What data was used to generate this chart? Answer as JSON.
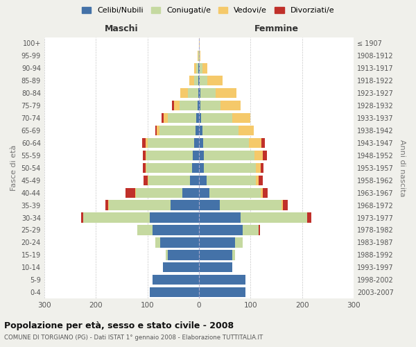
{
  "age_groups": [
    "0-4",
    "5-9",
    "10-14",
    "15-19",
    "20-24",
    "25-29",
    "30-34",
    "35-39",
    "40-44",
    "45-49",
    "50-54",
    "55-59",
    "60-64",
    "65-69",
    "70-74",
    "75-79",
    "80-84",
    "85-89",
    "90-94",
    "95-99",
    "100+"
  ],
  "birth_years": [
    "2003-2007",
    "1998-2002",
    "1993-1997",
    "1988-1992",
    "1983-1987",
    "1978-1982",
    "1973-1977",
    "1968-1972",
    "1963-1967",
    "1958-1962",
    "1953-1957",
    "1948-1952",
    "1943-1947",
    "1938-1942",
    "1933-1937",
    "1928-1932",
    "1923-1927",
    "1918-1922",
    "1913-1917",
    "1908-1912",
    "≤ 1907"
  ],
  "colors": {
    "celibe": "#4472A8",
    "coniugato": "#C5D9A0",
    "vedovo": "#F5C96A",
    "divorziato": "#C0302A"
  },
  "maschi": {
    "celibe": [
      95,
      90,
      70,
      60,
      75,
      90,
      95,
      55,
      32,
      18,
      14,
      12,
      10,
      7,
      5,
      3,
      2,
      1,
      1,
      0,
      0
    ],
    "coniugato": [
      0,
      0,
      0,
      5,
      10,
      30,
      130,
      120,
      90,
      80,
      88,
      90,
      90,
      70,
      55,
      35,
      20,
      8,
      4,
      1,
      0
    ],
    "vedovo": [
      0,
      0,
      0,
      0,
      0,
      0,
      0,
      1,
      2,
      2,
      2,
      2,
      3,
      5,
      8,
      10,
      15,
      10,
      5,
      2,
      0
    ],
    "divorziato": [
      0,
      0,
      0,
      0,
      0,
      0,
      3,
      5,
      18,
      8,
      5,
      5,
      7,
      3,
      5,
      5,
      0,
      0,
      0,
      0,
      0
    ]
  },
  "femmine": {
    "nubile": [
      90,
      90,
      65,
      65,
      70,
      85,
      80,
      40,
      20,
      15,
      10,
      10,
      8,
      6,
      4,
      2,
      2,
      1,
      1,
      0,
      0
    ],
    "coniugata": [
      0,
      0,
      0,
      5,
      15,
      30,
      130,
      120,
      100,
      95,
      100,
      98,
      88,
      70,
      60,
      40,
      30,
      15,
      5,
      1,
      0
    ],
    "vedova": [
      0,
      0,
      0,
      0,
      0,
      0,
      0,
      2,
      3,
      5,
      10,
      15,
      25,
      30,
      35,
      38,
      40,
      30,
      10,
      2,
      1
    ],
    "divorziata": [
      0,
      0,
      0,
      0,
      0,
      3,
      8,
      10,
      10,
      8,
      5,
      8,
      7,
      0,
      0,
      0,
      0,
      0,
      0,
      0,
      0
    ]
  },
  "xlim": 300,
  "title": "Popolazione per età, sesso e stato civile - 2008",
  "subtitle": "COMUNE DI TORGIANO (PG) - Dati ISTAT 1° gennaio 2008 - Elaborazione TUTTITALIA.IT",
  "xlabel_left": "Maschi",
  "xlabel_right": "Femmine",
  "ylabel_left": "Fasce di età",
  "ylabel_right": "Anni di nascita",
  "legend_labels": [
    "Celibi/Nubili",
    "Coniugati/e",
    "Vedovi/e",
    "Divorziati/e"
  ],
  "bg_color": "#f0f0eb",
  "plot_bg": "#ffffff"
}
